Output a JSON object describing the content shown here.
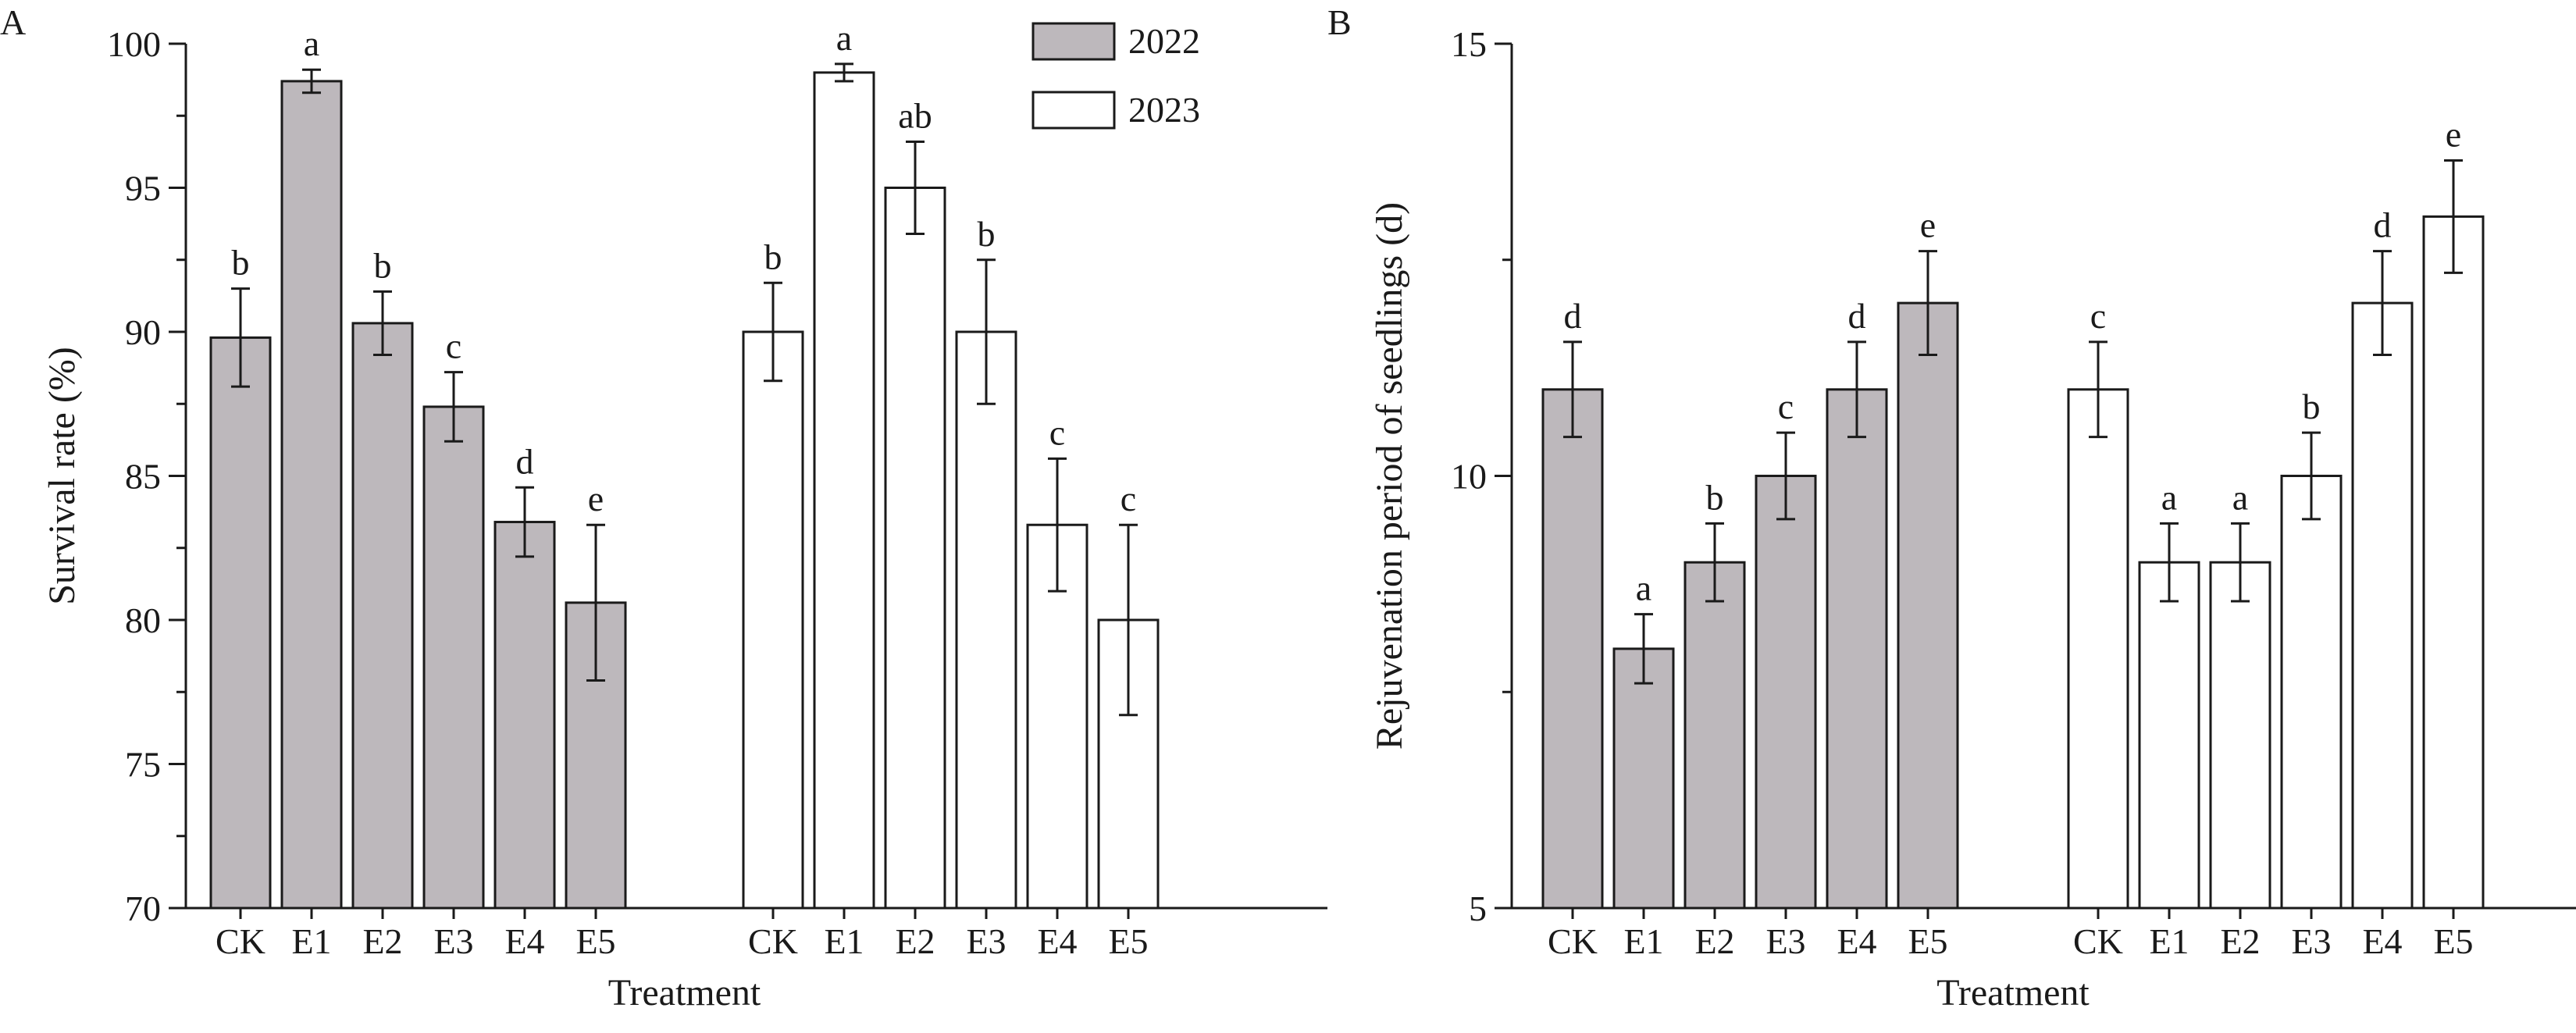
{
  "colors": {
    "fill_2022": "#bdb8bc",
    "fill_2023": "#ffffff",
    "ink": "#1a1a1a"
  },
  "legend": [
    {
      "label": "2022",
      "fill": "#bdb8bc"
    },
    {
      "label": "2023",
      "fill": "#ffffff"
    }
  ],
  "chart_data": [
    {
      "panel": "A",
      "type": "bar",
      "xlabel": "Treatment",
      "ylabel": "Survival rate (%)",
      "ylim": [
        70,
        100
      ],
      "yticks": [
        70,
        75,
        80,
        85,
        90,
        95,
        100
      ],
      "legend_position": "top-right",
      "groups": [
        {
          "name": "2022",
          "categories": [
            "CK",
            "E1",
            "E2",
            "E3",
            "E4",
            "E5"
          ],
          "values": [
            89.8,
            98.7,
            90.3,
            87.4,
            83.4,
            80.6
          ],
          "errors": [
            1.7,
            0.4,
            1.1,
            1.2,
            1.2,
            2.7
          ],
          "letters": [
            "b",
            "a",
            "b",
            "c",
            "d",
            "e"
          ]
        },
        {
          "name": "2023",
          "categories": [
            "CK",
            "E1",
            "E2",
            "E3",
            "E4",
            "E5"
          ],
          "values": [
            90.0,
            99.0,
            95.0,
            90.0,
            83.3,
            80.0
          ],
          "errors": [
            1.7,
            0.3,
            1.6,
            2.5,
            2.3,
            3.3
          ],
          "letters": [
            "b",
            "a",
            "ab",
            "b",
            "c",
            "c"
          ]
        }
      ]
    },
    {
      "panel": "B",
      "type": "bar",
      "xlabel": "Treatment",
      "ylabel": "Rejuvenation period of seedlings (d)",
      "ylim": [
        5,
        15
      ],
      "yticks": [
        5,
        10,
        15
      ],
      "groups": [
        {
          "name": "2022",
          "categories": [
            "CK",
            "E1",
            "E2",
            "E3",
            "E4",
            "E5"
          ],
          "values": [
            11,
            8,
            9,
            10,
            11,
            12
          ],
          "errors": [
            0.55,
            0.4,
            0.45,
            0.5,
            0.55,
            0.6
          ],
          "letters": [
            "d",
            "a",
            "b",
            "c",
            "d",
            "e"
          ]
        },
        {
          "name": "2023",
          "categories": [
            "CK",
            "E1",
            "E2",
            "E3",
            "E4",
            "E5"
          ],
          "values": [
            11,
            9,
            9,
            10,
            12,
            13
          ],
          "errors": [
            0.55,
            0.45,
            0.45,
            0.5,
            0.6,
            0.65
          ],
          "letters": [
            "c",
            "a",
            "a",
            "b",
            "d",
            "e"
          ]
        }
      ]
    }
  ]
}
